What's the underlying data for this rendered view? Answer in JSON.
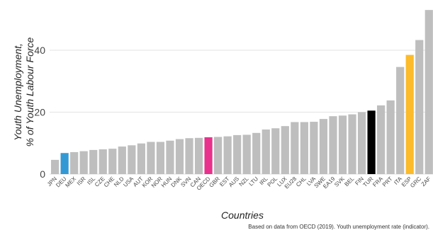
{
  "chart_data": {
    "type": "bar",
    "title": "",
    "xlabel": "Countries",
    "ylabel_lines": [
      "Youth Unemployment,",
      "% of Youth Labour Force"
    ],
    "caption": "Based on data from OECD (2019). Youth unemployment rate (indicator).",
    "ylim": [
      0,
      52
    ],
    "yticks": [
      0,
      20,
      40
    ],
    "grid": "horizontal",
    "legend": "none",
    "default_color": "#BEBEBE",
    "highlight_colors": {
      "DEU": "#3399D4",
      "OECD": "#E8318C",
      "TUR": "#000000",
      "ESP": "#FBBB2B"
    },
    "categories": [
      "JPN",
      "DEU",
      "MEX",
      "ISR",
      "ISL",
      "CZE",
      "CHE",
      "NLD",
      "USA",
      "AUT",
      "KOR",
      "NOR",
      "HUN",
      "DNK",
      "SVN",
      "CAN",
      "OECD",
      "GBR",
      "EST",
      "AUS",
      "NZL",
      "LTU",
      "IRL",
      "POL",
      "LUX",
      "EU28",
      "CHL",
      "LVA",
      "SWE",
      "EA19",
      "SVK",
      "BEL",
      "FIN",
      "TUR",
      "FRA",
      "PRT",
      "ITA",
      "ESP",
      "GRC",
      "ZAF"
    ],
    "values": [
      4.6,
      6.8,
      7.1,
      7.4,
      7.8,
      8.0,
      8.2,
      8.9,
      9.3,
      9.9,
      10.4,
      10.4,
      10.8,
      11.3,
      11.6,
      11.7,
      11.9,
      12.0,
      12.2,
      12.6,
      12.7,
      13.3,
      14.4,
      14.8,
      15.5,
      16.8,
      16.8,
      16.9,
      17.8,
      18.7,
      18.9,
      19.3,
      20.0,
      20.5,
      22.2,
      23.8,
      34.6,
      38.5,
      43.3,
      53.0
    ]
  }
}
